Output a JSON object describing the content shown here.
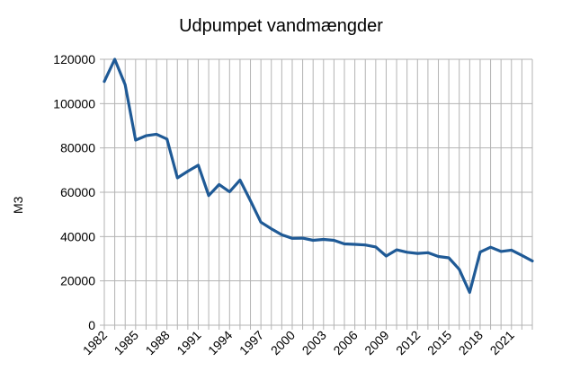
{
  "chart_data": {
    "type": "line",
    "title": "Udpumpet vandmængder",
    "xlabel": "",
    "ylabel": "M3",
    "ylim": [
      0,
      120000
    ],
    "y_ticks": [
      "0",
      "20000",
      "40000",
      "60000",
      "80000",
      "100000",
      "120000"
    ],
    "x_tick_labels": [
      "1982",
      "1985",
      "1988",
      "1991",
      "1994",
      "1997",
      "2000",
      "2003",
      "2006",
      "2009",
      "2012",
      "2015",
      "2018",
      "2021"
    ],
    "grid": true,
    "legend": "none",
    "line_color": "#1f5a96",
    "series": [
      {
        "x": [
          1982,
          1983,
          1984,
          1985,
          1986,
          1987,
          1988,
          1989,
          1990,
          1991,
          1992,
          1993,
          1994,
          1995,
          1996,
          1997,
          1998,
          1999,
          2000,
          2001,
          2002,
          2003,
          2004,
          2005,
          2006,
          2007,
          2008,
          2009,
          2010,
          2011,
          2012,
          2013,
          2014,
          2015,
          2016,
          2017,
          2018,
          2019,
          2020,
          2021,
          2022,
          2023
        ],
        "values": [
          110000,
          120000,
          108500,
          83500,
          85500,
          86200,
          84000,
          66500,
          69500,
          72200,
          58500,
          63500,
          60200,
          65500,
          56200,
          46500,
          43500,
          40800,
          39200,
          39300,
          38300,
          38700,
          38300,
          36700,
          36500,
          36200,
          35300,
          31200,
          34000,
          32900,
          32400,
          32700,
          31000,
          30400,
          25200,
          14800,
          33000,
          35200,
          33300,
          33900,
          31500,
          29000
        ]
      }
    ]
  }
}
